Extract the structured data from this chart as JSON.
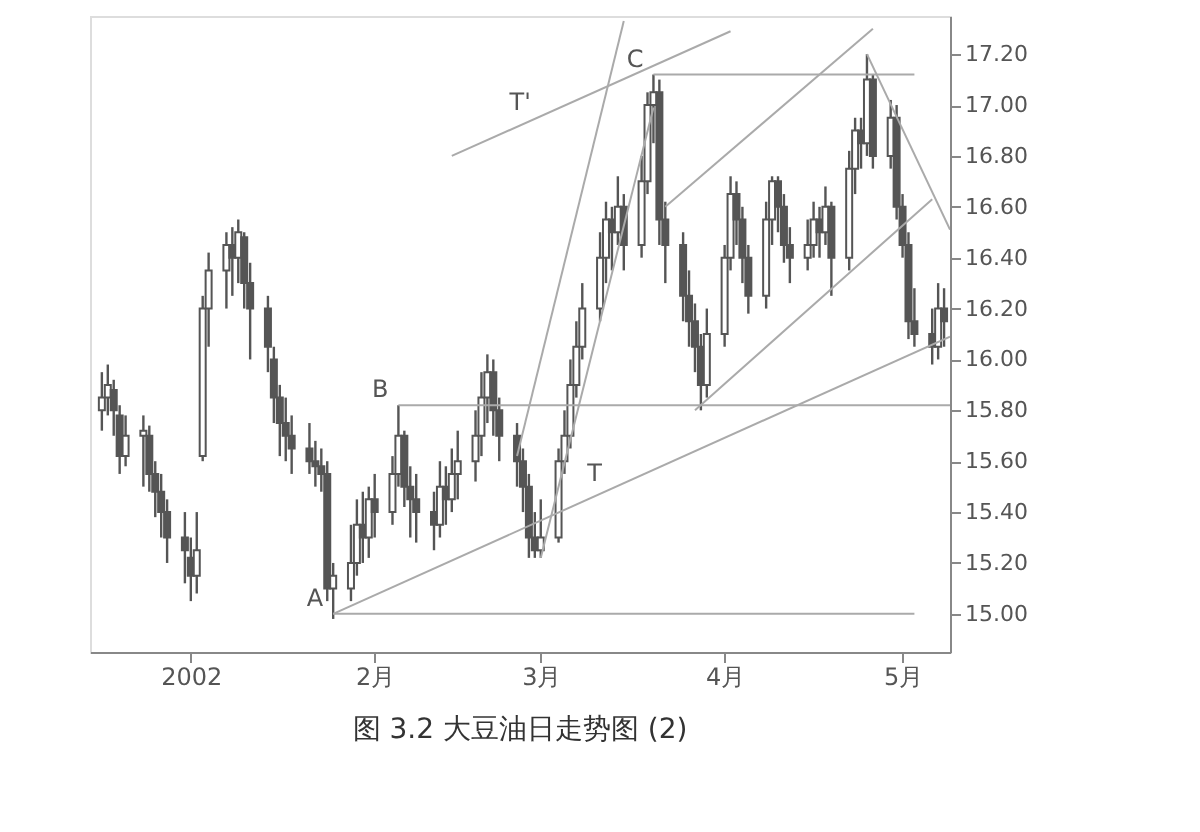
{
  "chart_data": {
    "type": "candlestick",
    "title": "图 3.2    大豆油日走势图 (2)",
    "color": "#555555",
    "x": [
      "2001-12-17",
      "2001-12-18",
      "2001-12-19",
      "2001-12-20",
      "2001-12-21",
      "2001-12-24",
      "2001-12-25",
      "2001-12-26",
      "2001-12-27",
      "2001-12-28",
      "2001-12-31",
      "2002-01-01",
      "2002-01-02",
      "2002-01-03",
      "2002-01-04",
      "2002-01-07",
      "2002-01-08",
      "2002-01-09",
      "2002-01-10",
      "2002-01-11",
      "2002-01-14",
      "2002-01-15",
      "2002-01-16",
      "2002-01-17",
      "2002-01-18",
      "2002-01-21",
      "2002-01-22",
      "2002-01-23",
      "2002-01-24",
      "2002-01-25",
      "2002-01-28",
      "2002-01-29",
      "2002-01-30",
      "2002-01-31",
      "2002-02-01",
      "2002-02-04",
      "2002-02-05",
      "2002-02-06",
      "2002-02-07",
      "2002-02-08",
      "2002-02-11",
      "2002-02-12",
      "2002-02-13",
      "2002-02-14",
      "2002-02-15",
      "2002-02-18",
      "2002-02-19",
      "2002-02-20",
      "2002-02-21",
      "2002-02-22",
      "2002-02-25",
      "2002-02-26",
      "2002-02-27",
      "2002-02-28",
      "2002-03-01",
      "2002-03-04",
      "2002-03-05",
      "2002-03-06",
      "2002-03-07",
      "2002-03-08",
      "2002-03-11",
      "2002-03-12",
      "2002-03-13",
      "2002-03-14",
      "2002-03-15",
      "2002-03-18",
      "2002-03-19",
      "2002-03-20",
      "2002-03-21",
      "2002-03-22",
      "2002-03-25",
      "2002-03-26",
      "2002-03-27",
      "2002-03-28",
      "2002-03-29",
      "2002-04-01",
      "2002-04-02",
      "2002-04-03",
      "2002-04-04",
      "2002-04-05",
      "2002-04-08",
      "2002-04-09",
      "2002-04-10",
      "2002-04-11",
      "2002-04-12",
      "2002-04-15",
      "2002-04-16",
      "2002-04-17",
      "2002-04-18",
      "2002-04-19",
      "2002-04-22",
      "2002-04-23",
      "2002-04-24",
      "2002-04-25",
      "2002-04-26",
      "2002-04-29",
      "2002-04-30",
      "2002-05-01",
      "2002-05-02",
      "2002-05-03",
      "2002-05-06",
      "2002-05-07",
      "2002-05-08"
    ],
    "ohlc": [
      [
        15.8,
        15.95,
        15.72,
        15.85
      ],
      [
        15.85,
        15.98,
        15.78,
        15.9
      ],
      [
        15.88,
        15.92,
        15.7,
        15.8
      ],
      [
        15.78,
        15.82,
        15.55,
        15.62
      ],
      [
        15.62,
        15.78,
        15.58,
        15.7
      ],
      [
        15.7,
        15.78,
        15.5,
        15.72
      ],
      [
        15.7,
        15.74,
        15.48,
        15.55
      ],
      [
        15.55,
        15.6,
        15.38,
        15.48
      ],
      [
        15.48,
        15.55,
        15.3,
        15.4
      ],
      [
        15.4,
        15.45,
        15.2,
        15.3
      ],
      [
        15.3,
        15.4,
        15.12,
        15.25
      ],
      [
        15.22,
        15.3,
        15.05,
        15.15
      ],
      [
        15.15,
        15.4,
        15.08,
        15.25
      ],
      [
        15.62,
        16.25,
        15.6,
        16.2
      ],
      [
        16.2,
        16.42,
        16.05,
        16.35
      ],
      [
        16.35,
        16.5,
        16.2,
        16.45
      ],
      [
        16.45,
        16.52,
        16.25,
        16.4
      ],
      [
        16.4,
        16.55,
        16.3,
        16.5
      ],
      [
        16.48,
        16.5,
        16.2,
        16.3
      ],
      [
        16.3,
        16.38,
        16.0,
        16.2
      ],
      [
        16.2,
        16.25,
        15.95,
        16.05
      ],
      [
        16.0,
        16.05,
        15.75,
        15.85
      ],
      [
        15.85,
        15.9,
        15.62,
        15.75
      ],
      [
        15.75,
        15.85,
        15.6,
        15.7
      ],
      [
        15.7,
        15.78,
        15.55,
        15.65
      ],
      [
        15.65,
        15.75,
        15.55,
        15.6
      ],
      [
        15.6,
        15.68,
        15.5,
        15.58
      ],
      [
        15.58,
        15.65,
        15.48,
        15.55
      ],
      [
        15.55,
        15.6,
        15.05,
        15.1
      ],
      [
        15.1,
        15.2,
        14.98,
        15.15
      ],
      [
        15.1,
        15.35,
        15.05,
        15.2
      ],
      [
        15.2,
        15.45,
        15.15,
        15.35
      ],
      [
        15.35,
        15.48,
        15.2,
        15.3
      ],
      [
        15.3,
        15.5,
        15.22,
        15.45
      ],
      [
        15.45,
        15.55,
        15.3,
        15.4
      ],
      [
        15.4,
        15.62,
        15.35,
        15.55
      ],
      [
        15.55,
        15.82,
        15.5,
        15.7
      ],
      [
        15.7,
        15.72,
        15.42,
        15.5
      ],
      [
        15.5,
        15.58,
        15.3,
        15.45
      ],
      [
        15.45,
        15.55,
        15.28,
        15.4
      ],
      [
        15.4,
        15.48,
        15.25,
        15.35
      ],
      [
        15.35,
        15.6,
        15.3,
        15.5
      ],
      [
        15.5,
        15.58,
        15.35,
        15.45
      ],
      [
        15.45,
        15.65,
        15.4,
        15.55
      ],
      [
        15.55,
        15.72,
        15.45,
        15.6
      ],
      [
        15.6,
        15.8,
        15.52,
        15.7
      ],
      [
        15.7,
        15.95,
        15.62,
        15.85
      ],
      [
        15.85,
        16.02,
        15.75,
        15.95
      ],
      [
        15.95,
        16.0,
        15.7,
        15.8
      ],
      [
        15.8,
        15.85,
        15.6,
        15.7
      ],
      [
        15.7,
        15.75,
        15.5,
        15.6
      ],
      [
        15.6,
        15.65,
        15.4,
        15.5
      ],
      [
        15.5,
        15.55,
        15.22,
        15.3
      ],
      [
        15.3,
        15.4,
        15.22,
        15.25
      ],
      [
        15.25,
        15.45,
        15.22,
        15.3
      ],
      [
        15.3,
        15.65,
        15.28,
        15.6
      ],
      [
        15.6,
        15.8,
        15.55,
        15.7
      ],
      [
        15.7,
        16.0,
        15.65,
        15.9
      ],
      [
        15.9,
        16.15,
        15.85,
        16.05
      ],
      [
        16.05,
        16.3,
        16.0,
        16.2
      ],
      [
        16.2,
        16.5,
        16.15,
        16.4
      ],
      [
        16.4,
        16.62,
        16.3,
        16.55
      ],
      [
        16.55,
        16.6,
        16.35,
        16.5
      ],
      [
        16.5,
        16.72,
        16.45,
        16.6
      ],
      [
        16.6,
        16.65,
        16.35,
        16.45
      ],
      [
        16.45,
        16.8,
        16.4,
        16.7
      ],
      [
        16.7,
        17.05,
        16.65,
        17.0
      ],
      [
        17.0,
        17.12,
        16.85,
        17.05
      ],
      [
        17.05,
        17.1,
        16.45,
        16.55
      ],
      [
        16.55,
        16.62,
        16.3,
        16.45
      ],
      [
        16.45,
        16.5,
        16.15,
        16.25
      ],
      [
        16.25,
        16.35,
        16.05,
        16.15
      ],
      [
        16.15,
        16.22,
        15.95,
        16.05
      ],
      [
        16.05,
        16.1,
        15.8,
        15.9
      ],
      [
        15.9,
        16.2,
        15.85,
        16.1
      ],
      [
        16.1,
        16.45,
        16.05,
        16.4
      ],
      [
        16.4,
        16.72,
        16.35,
        16.65
      ],
      [
        16.65,
        16.7,
        16.45,
        16.55
      ],
      [
        16.55,
        16.6,
        16.3,
        16.4
      ],
      [
        16.4,
        16.45,
        16.18,
        16.25
      ],
      [
        16.25,
        16.62,
        16.2,
        16.55
      ],
      [
        16.55,
        16.72,
        16.45,
        16.7
      ],
      [
        16.7,
        16.72,
        16.5,
        16.6
      ],
      [
        16.6,
        16.65,
        16.38,
        16.45
      ],
      [
        16.45,
        16.52,
        16.3,
        16.4
      ],
      [
        16.4,
        16.55,
        16.35,
        16.45
      ],
      [
        16.45,
        16.62,
        16.4,
        16.55
      ],
      [
        16.55,
        16.6,
        16.4,
        16.5
      ],
      [
        16.5,
        16.68,
        16.45,
        16.6
      ],
      [
        16.6,
        16.62,
        16.25,
        16.4
      ],
      [
        16.4,
        16.82,
        16.35,
        16.75
      ],
      [
        16.75,
        16.95,
        16.65,
        16.9
      ],
      [
        16.9,
        16.95,
        16.75,
        16.85
      ],
      [
        16.85,
        17.2,
        16.8,
        17.1
      ],
      [
        17.1,
        17.12,
        16.75,
        16.8
      ],
      [
        16.8,
        17.02,
        16.75,
        16.95
      ],
      [
        16.95,
        17.0,
        16.55,
        16.6
      ],
      [
        16.6,
        16.65,
        16.4,
        16.45
      ],
      [
        16.45,
        16.5,
        16.08,
        16.15
      ],
      [
        16.15,
        16.28,
        16.05,
        16.1
      ],
      [
        16.1,
        16.2,
        15.98,
        16.05
      ],
      [
        16.05,
        16.3,
        16.0,
        16.2
      ],
      [
        16.2,
        16.28,
        16.05,
        16.15
      ]
    ],
    "series": [
      {
        "type": "line",
        "color": "#aaaaaa",
        "x": [
          "2002-01-25",
          "2002-05-09"
        ],
        "values": [
          15.0,
          16.09
        ]
      },
      {
        "type": "line",
        "color": "#aaaaaa",
        "x": [
          "2002-02-14",
          "2002-04-02"
        ],
        "values": [
          16.8,
          17.29
        ]
      },
      {
        "type": "line",
        "color": "#aaaaaa",
        "x": [
          "2002-02-25",
          "2002-03-15"
        ],
        "values": [
          15.62,
          17.33
        ]
      },
      {
        "type": "line",
        "color": "#aaaaaa",
        "x": [
          "2002-03-01",
          "2002-03-20"
        ],
        "values": [
          15.22,
          16.99
        ]
      },
      {
        "type": "line",
        "color": "#aaaaaa",
        "x": [
          "2002-03-22",
          "2002-04-26"
        ],
        "values": [
          16.6,
          17.3
        ]
      },
      {
        "type": "line",
        "color": "#aaaaaa",
        "x": [
          "2002-03-27",
          "2002-05-06"
        ],
        "values": [
          15.8,
          16.63
        ]
      },
      {
        "type": "line",
        "color": "#aaaaaa",
        "x": [
          "2002-04-25",
          "2002-05-09"
        ],
        "values": [
          17.2,
          16.51
        ]
      },
      {
        "type": "line",
        "color": "#aaaaaa",
        "x": [
          "2002-01-25",
          "2002-05-03"
        ],
        "values": [
          15.0,
          15.0
        ]
      },
      {
        "type": "line",
        "color": "#aaaaaa",
        "x": [
          "2002-02-05",
          "2002-05-09"
        ],
        "values": [
          15.82,
          15.82
        ]
      },
      {
        "type": "line",
        "color": "#aaaaaa",
        "x": [
          "2002-03-20",
          "2002-05-03"
        ],
        "values": [
          17.12,
          17.12
        ]
      }
    ],
    "annotations": [
      {
        "text": "A",
        "x": "2002-01-25",
        "y": 15.0
      },
      {
        "text": "B",
        "x": "2002-02-05",
        "y": 15.82
      },
      {
        "text": "C",
        "x": "2002-03-20",
        "y": 17.12
      },
      {
        "text": "T'",
        "x": "2002-03-01",
        "y": 16.95
      },
      {
        "text": "T",
        "x": "2002-03-13",
        "y": 15.49
      }
    ],
    "xlim": [
      "2001-12-15",
      "2002-05-09"
    ],
    "xticks": [
      {
        "value": "2002-01-01",
        "label": "2002"
      },
      {
        "value": "2002-02-01",
        "label": "2月"
      },
      {
        "value": "2002-03-01",
        "label": "3月"
      },
      {
        "value": "2002-04-01",
        "label": "4月"
      },
      {
        "value": "2002-05-01",
        "label": "5月"
      }
    ],
    "ylim": [
      14.85,
      17.35
    ],
    "yticks": [
      {
        "value": 15.0,
        "label": "15.00"
      },
      {
        "value": 15.2,
        "label": "15.20"
      },
      {
        "value": 15.4,
        "label": "15.40"
      },
      {
        "value": 15.6,
        "label": "15.60"
      },
      {
        "value": 15.8,
        "label": "15.80"
      },
      {
        "value": 16.0,
        "label": "16.00"
      },
      {
        "value": 16.2,
        "label": "16.20"
      },
      {
        "value": 16.4,
        "label": "16.40"
      },
      {
        "value": 16.6,
        "label": "16.60"
      },
      {
        "value": 16.8,
        "label": "16.80"
      },
      {
        "value": 17.0,
        "label": "17.00"
      },
      {
        "value": 17.2,
        "label": "17.20"
      }
    ],
    "grid": false
  }
}
